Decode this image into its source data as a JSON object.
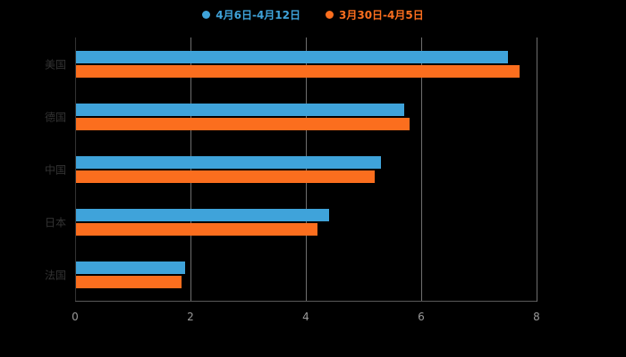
{
  "style": {
    "background": "#000000",
    "gridline_color": "#6f6f6f",
    "axis_line_color": "#5a5a5a",
    "tick_label_color": "#999999",
    "category_label_color": "#333333"
  },
  "chart_data": {
    "type": "bar",
    "orientation": "horizontal",
    "title": "",
    "xlabel": "",
    "ylabel": "",
    "xlim": [
      0,
      8
    ],
    "xticks": [
      0,
      2,
      4,
      6,
      8
    ],
    "grid": true,
    "legend_position": "top-center",
    "categories": [
      "美国",
      "德国",
      "中国",
      "日本",
      "法国"
    ],
    "series": [
      {
        "name": "4月6日-4月12日",
        "color": "#3fa3da",
        "values": [
          7.5,
          5.7,
          5.3,
          4.4,
          1.9
        ]
      },
      {
        "name": "3月30日-4月5日",
        "color": "#fb6e1e",
        "values": [
          7.7,
          5.8,
          5.2,
          4.2,
          1.85
        ]
      }
    ]
  }
}
